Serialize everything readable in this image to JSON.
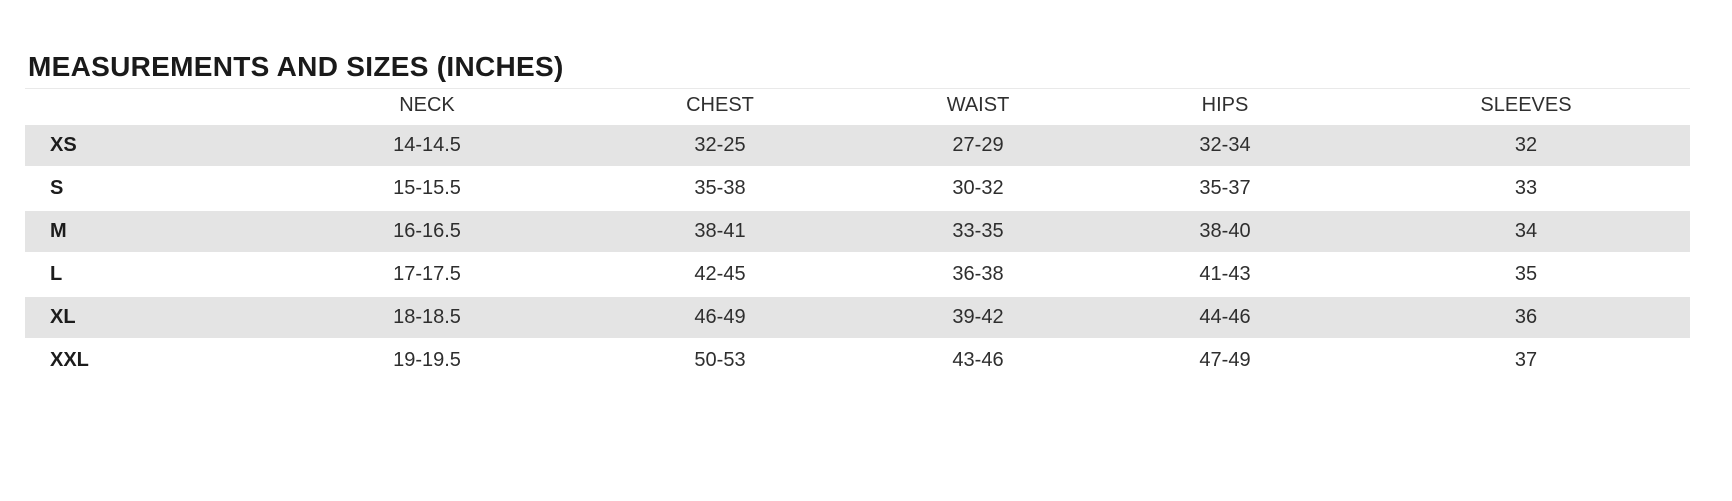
{
  "size_chart": {
    "title": "MEASUREMENTS AND SIZES (INCHES)",
    "columns": [
      "NECK",
      "CHEST",
      "WAIST",
      "HIPS",
      "SLEEVES"
    ],
    "rows": [
      {
        "size": "XS",
        "neck": "14-14.5",
        "chest": "32-25",
        "waist": "27-29",
        "hips": "32-34",
        "sleeves": "32"
      },
      {
        "size": "S",
        "neck": "15-15.5",
        "chest": "35-38",
        "waist": "30-32",
        "hips": "35-37",
        "sleeves": "33"
      },
      {
        "size": "M",
        "neck": "16-16.5",
        "chest": "38-41",
        "waist": "33-35",
        "hips": "38-40",
        "sleeves": "34"
      },
      {
        "size": "L",
        "neck": "17-17.5",
        "chest": "42-45",
        "waist": "36-38",
        "hips": "41-43",
        "sleeves": "35"
      },
      {
        "size": "XL",
        "neck": "18-18.5",
        "chest": "46-49",
        "waist": "39-42",
        "hips": "44-46",
        "sleeves": "36"
      },
      {
        "size": "XXL",
        "neck": "19-19.5",
        "chest": "50-53",
        "waist": "43-46",
        "hips": "47-49",
        "sleeves": "37"
      }
    ],
    "colors": {
      "stripe_row_background": "#e4e4e4",
      "title_text": "#1a1a1a",
      "body_text": "#2e2e2e",
      "header_rule": "#e9e9e9"
    }
  }
}
